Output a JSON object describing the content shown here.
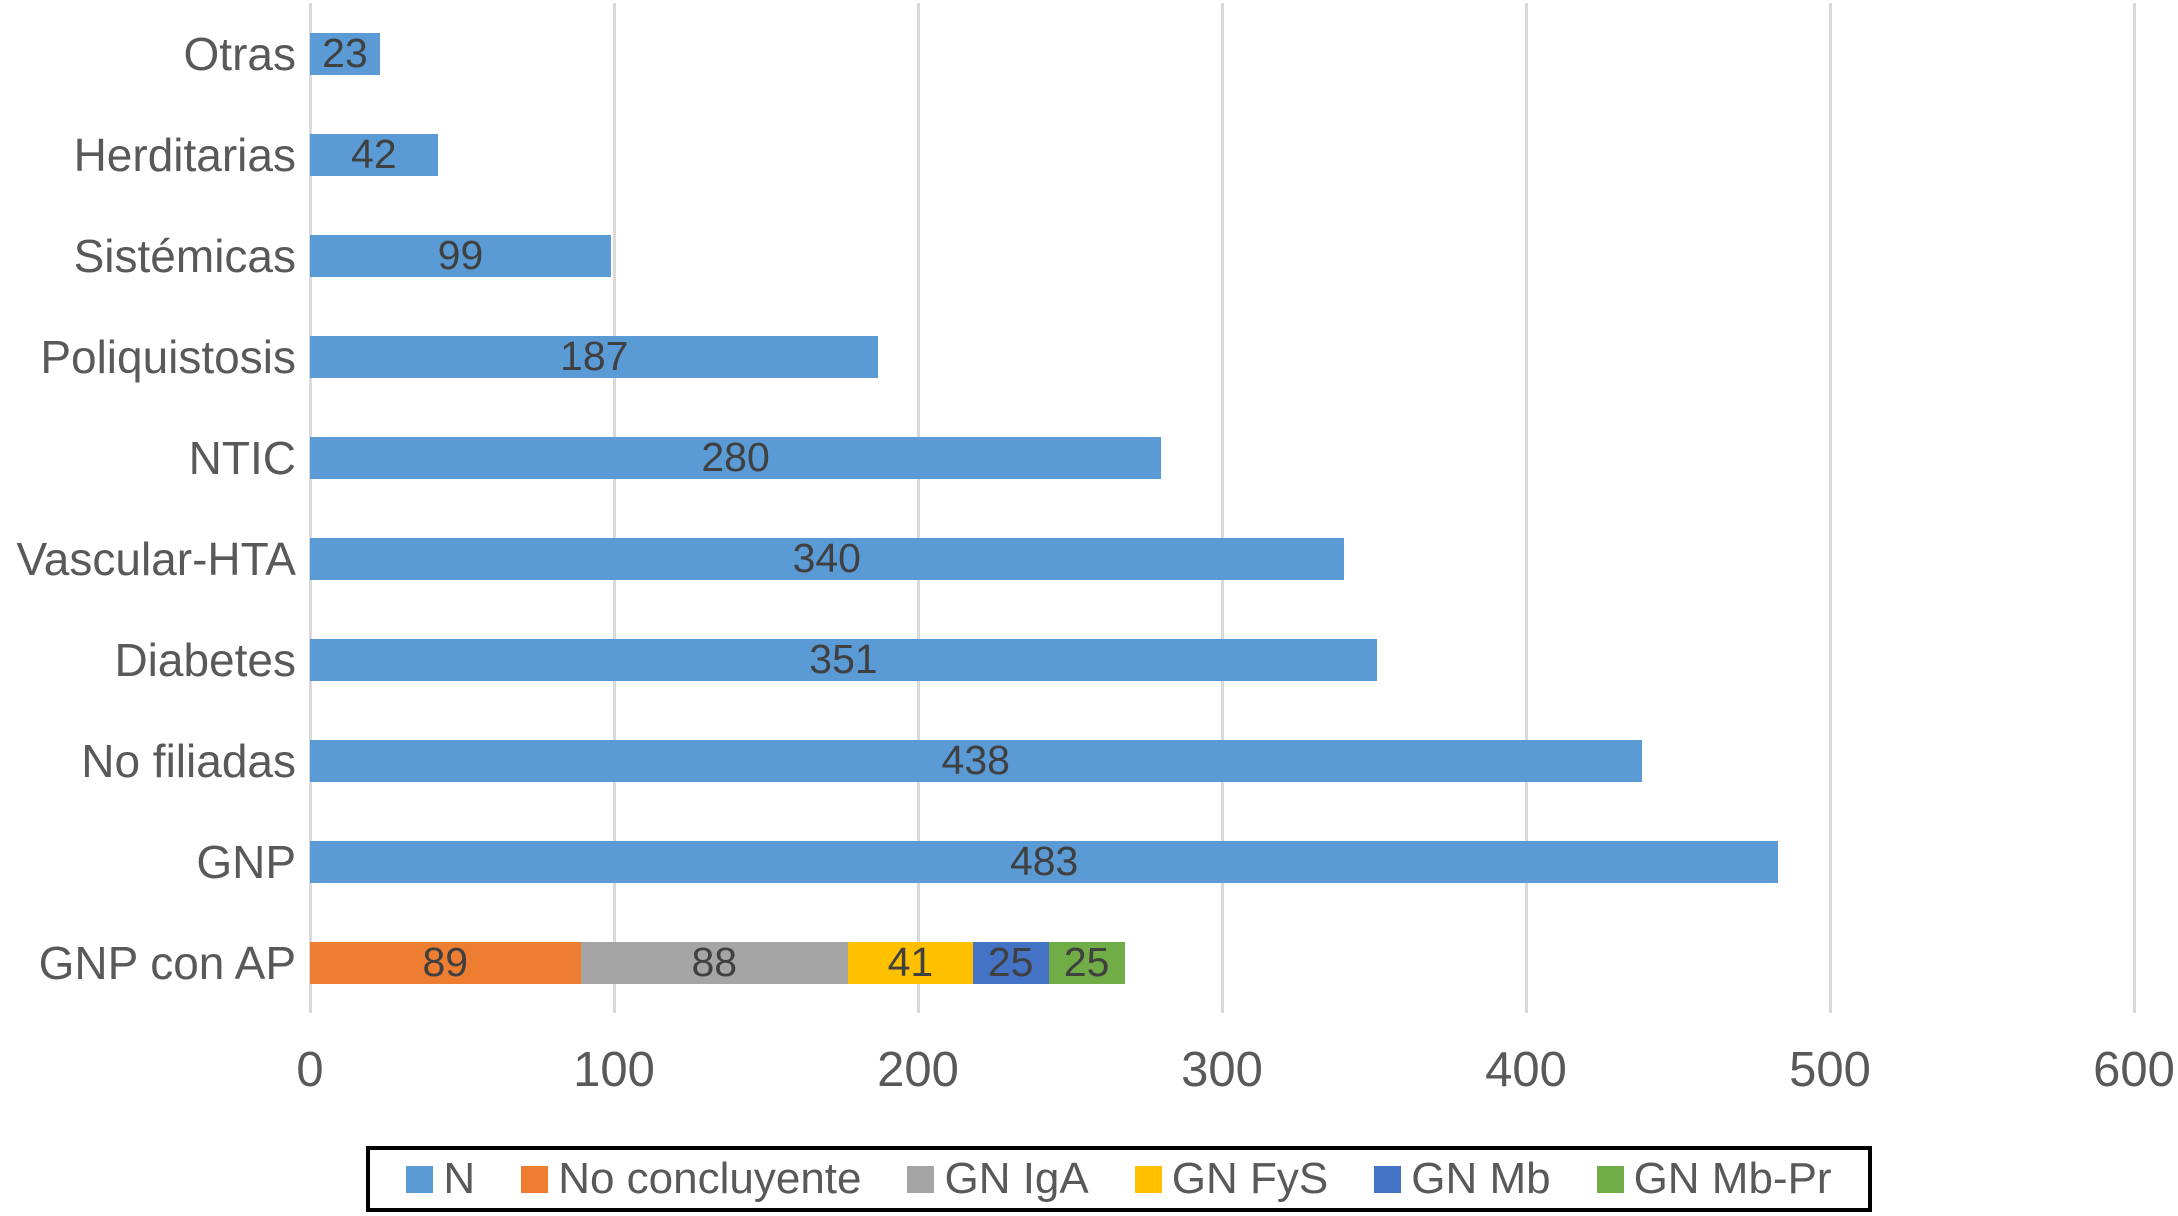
{
  "chart_data": {
    "type": "bar",
    "orientation": "horizontal",
    "title": "",
    "xlabel": "",
    "ylabel": "",
    "xlim": [
      0,
      600
    ],
    "x_ticks": [
      "0",
      "100",
      "200",
      "300",
      "400",
      "500",
      "600"
    ],
    "grid": "vertical-gridlines-on",
    "legend_position": "bottom",
    "legend": [
      {
        "label": "N",
        "color": "#5B9BD5"
      },
      {
        "label": "No concluyente",
        "color": "#ED7D31"
      },
      {
        "label": "GN IgA",
        "color": "#A5A5A5"
      },
      {
        "label": "GN FyS",
        "color": "#FFC000"
      },
      {
        "label": "GN Mb",
        "color": "#4472C4"
      },
      {
        "label": "GN Mb-Pr",
        "color": "#70AD47"
      }
    ],
    "series_colors": {
      "N": "#5B9BD5",
      "No concluyente": "#ED7D31",
      "GN IgA": "#A5A5A5",
      "GN FyS": "#FFC000",
      "GN Mb": "#4472C4",
      "GN Mb-Pr": "#70AD47"
    },
    "rows": [
      {
        "label": "Otras",
        "segments": [
          {
            "series": "N",
            "value": 23
          }
        ]
      },
      {
        "label": "Herditarias",
        "segments": [
          {
            "series": "N",
            "value": 42
          }
        ]
      },
      {
        "label": "Sistémicas",
        "segments": [
          {
            "series": "N",
            "value": 99
          }
        ]
      },
      {
        "label": "Poliquistosis",
        "segments": [
          {
            "series": "N",
            "value": 187
          }
        ]
      },
      {
        "label": "NTIC",
        "segments": [
          {
            "series": "N",
            "value": 280
          }
        ]
      },
      {
        "label": "Vascular-HTA",
        "segments": [
          {
            "series": "N",
            "value": 340
          }
        ]
      },
      {
        "label": "Diabetes",
        "segments": [
          {
            "series": "N",
            "value": 351
          }
        ]
      },
      {
        "label": "No filiadas",
        "segments": [
          {
            "series": "N",
            "value": 438
          }
        ]
      },
      {
        "label": "GNP",
        "segments": [
          {
            "series": "N",
            "value": 483
          }
        ]
      },
      {
        "label": "GNP con AP",
        "segments": [
          {
            "series": "No concluyente",
            "value": 89
          },
          {
            "series": "GN IgA",
            "value": 88
          },
          {
            "series": "GN FyS",
            "value": 41
          },
          {
            "series": "GN Mb",
            "value": 25
          },
          {
            "series": "GN Mb-Pr",
            "value": 25
          }
        ]
      }
    ],
    "colors_misc": {
      "gridline": "#D9D9D9",
      "axis_text": "#595959",
      "data_label_text": "#404040",
      "legend_border": "#000000",
      "background": "#FFFFFF"
    }
  }
}
